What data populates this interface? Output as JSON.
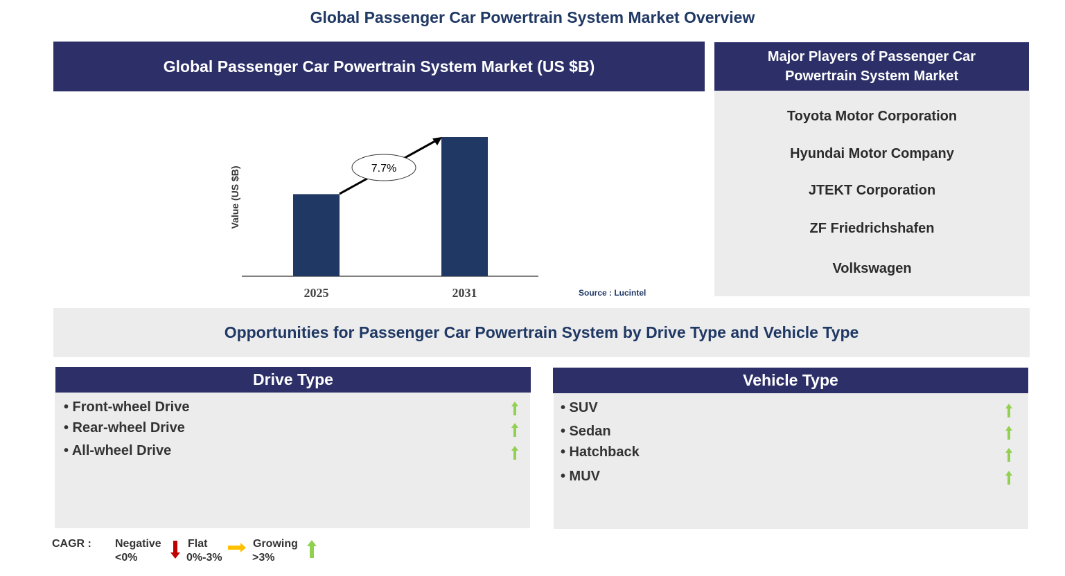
{
  "title": "Global Passenger Car Powertrain System Market Overview",
  "market_header": "Global Passenger Car Powertrain System Market (US $B)",
  "players_header": "Major Players of Passenger Car Powertrain System Market",
  "players": [
    "Toyota Motor Corporation",
    "Hyundai Motor Company",
    "JTEKT Corporation",
    "ZF Friedrichshafen",
    "Volkswagen"
  ],
  "opportunities_title": "Opportunities for Passenger Car Powertrain System by Drive Type and Vehicle Type",
  "drive": {
    "header": "Drive Type",
    "items": [
      "• Front-wheel Drive",
      "• Rear-wheel Drive",
      "• All-wheel Drive"
    ],
    "trend": "growing"
  },
  "vehicle": {
    "header": "Vehicle Type",
    "items": [
      "• SUV",
      "• Sedan",
      "• Hatchback",
      "• MUV"
    ],
    "trend": "growing"
  },
  "legend": {
    "label": "CAGR :",
    "negative": "Negative",
    "negative_range": "<0%",
    "flat": "Flat",
    "flat_range": "0%-3%",
    "growing": "Growing",
    "growing_range": ">3%",
    "colors": {
      "negative": "#c00000",
      "flat": "#ffc000",
      "growing": "#92d050"
    }
  },
  "chart_data": {
    "type": "bar",
    "categories": [
      "2025",
      "2031"
    ],
    "values": [
      59,
      100
    ],
    "value_note": "relative bar heights; no values printed",
    "ylabel": "Value (US $B)",
    "cagr_label": "7.7%",
    "source": "Source : Lucintel",
    "bar_color": "#203864"
  }
}
